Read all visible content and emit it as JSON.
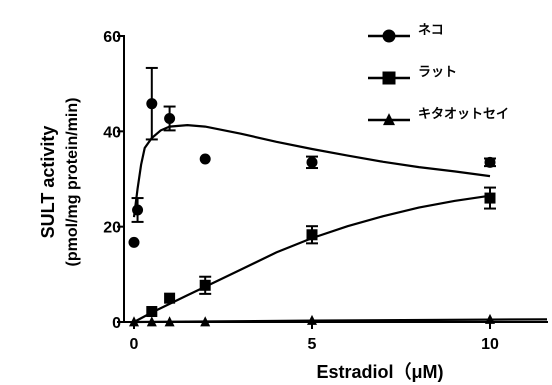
{
  "chart_data": {
    "type": "line",
    "xlabel": "Estradiol（μM)",
    "ylabel_line1": "SULT activity",
    "ylabel_line2": "(pmol/mg protein/min)",
    "xlim": [
      0,
      11.6
    ],
    "ylim": [
      0,
      60
    ],
    "xticks": [
      0,
      5,
      10
    ],
    "yticks": [
      0,
      20,
      40,
      60
    ],
    "grid": false,
    "legend_position": "top-right",
    "series": [
      {
        "name": "ネコ",
        "marker": "circle",
        "points": [
          {
            "x": 0.0,
            "y": 16.7,
            "err": 0
          },
          {
            "x": 0.1,
            "y": 23.5,
            "err": 2.5
          },
          {
            "x": 0.5,
            "y": 45.8,
            "err": 7.5
          },
          {
            "x": 1.0,
            "y": 42.7,
            "err": 2.5
          },
          {
            "x": 2.0,
            "y": 34.2,
            "err": 0
          },
          {
            "x": 5.0,
            "y": 33.5,
            "err": 1.2
          },
          {
            "x": 10.0,
            "y": 33.5,
            "err": 0.8
          }
        ],
        "fit": [
          [
            0.0,
            22.0
          ],
          [
            0.1,
            28.0
          ],
          [
            0.2,
            33.0
          ],
          [
            0.3,
            36.5
          ],
          [
            0.5,
            38.6
          ],
          [
            0.75,
            40.2
          ],
          [
            1.0,
            41.0
          ],
          [
            1.5,
            41.3
          ],
          [
            2.0,
            41.0
          ],
          [
            3.0,
            39.5
          ],
          [
            4.0,
            37.8
          ],
          [
            5.0,
            36.3
          ],
          [
            6.0,
            34.9
          ],
          [
            7.0,
            33.6
          ],
          [
            8.0,
            32.5
          ],
          [
            9.0,
            31.6
          ],
          [
            10.0,
            30.6
          ]
        ]
      },
      {
        "name": "ラット",
        "marker": "square",
        "points": [
          {
            "x": 0.5,
            "y": 2.2,
            "err": 0
          },
          {
            "x": 1.0,
            "y": 5.0,
            "err": 0
          },
          {
            "x": 2.0,
            "y": 7.7,
            "err": 1.8
          },
          {
            "x": 5.0,
            "y": 18.3,
            "err": 1.8
          },
          {
            "x": 10.0,
            "y": 26.0,
            "err": 2.2
          }
        ],
        "fit": [
          [
            0.0,
            0.0
          ],
          [
            0.5,
            2.0
          ],
          [
            1.0,
            3.8
          ],
          [
            1.5,
            5.6
          ],
          [
            2.0,
            7.4
          ],
          [
            3.0,
            11.0
          ],
          [
            4.0,
            14.6
          ],
          [
            5.0,
            17.6
          ],
          [
            6.0,
            20.1
          ],
          [
            7.0,
            22.2
          ],
          [
            8.0,
            24.0
          ],
          [
            9.0,
            25.4
          ],
          [
            10.0,
            26.5
          ]
        ]
      },
      {
        "name": "キタオットセイ",
        "marker": "triangle",
        "points": [
          {
            "x": 0.0,
            "y": 0.0,
            "err": 0
          },
          {
            "x": 0.5,
            "y": 0.0,
            "err": 0
          },
          {
            "x": 1.0,
            "y": 0.0,
            "err": 0
          },
          {
            "x": 2.0,
            "y": 0.0,
            "err": 0
          },
          {
            "x": 5.0,
            "y": 0.3,
            "err": 0
          },
          {
            "x": 10.0,
            "y": 0.5,
            "err": 0
          }
        ],
        "fit": [
          [
            0.0,
            0.0
          ],
          [
            2.0,
            0.1
          ],
          [
            5.0,
            0.3
          ],
          [
            10.0,
            0.5
          ],
          [
            11.6,
            0.55
          ]
        ]
      }
    ]
  },
  "colors": {
    "ink": "#000000",
    "background": "#ffffff"
  }
}
